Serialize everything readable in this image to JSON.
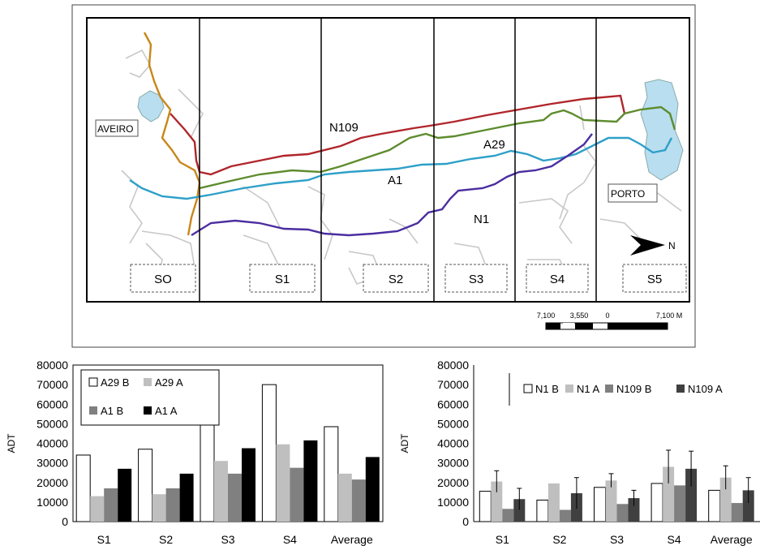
{
  "colors": {
    "n109": "#b0262b",
    "a29": "#5e8c2e",
    "a1": "#2ea0c8",
    "n1": "#4b2ea0",
    "coast_road": "#c8871a",
    "lagoon": "#b9def0",
    "outline": "#c8c8c8",
    "b_fill": "#ffffff",
    "a29a_fill": "#bfbfbf",
    "a1b_fill": "#808080",
    "a1a_fill": "#000000",
    "n1a_fill": "#bfbfbf",
    "n109b_fill": "#7f7f7f",
    "n109a_fill": "#404040"
  },
  "map": {
    "road_labels": {
      "n109": "N109",
      "a29": "A29",
      "a1": "A1",
      "n1": "N1"
    },
    "city_labels": {
      "aveiro": "AVEIRO",
      "porto": "PORTO"
    },
    "sections": [
      "SO",
      "S1",
      "S2",
      "S3",
      "S4",
      "S5"
    ],
    "north_label": "N",
    "scale_labels": [
      "7,100",
      "3,550",
      "0",
      "7,100 M"
    ]
  },
  "chart_data": [
    {
      "type": "bar",
      "categories": [
        "S1",
        "S2",
        "S3",
        "S4",
        "Average"
      ],
      "ylabel": "ADT",
      "ylim": [
        0,
        80000
      ],
      "yticks": [
        0,
        10000,
        20000,
        30000,
        40000,
        50000,
        60000,
        70000,
        80000
      ],
      "legend_position": "top-left",
      "series": [
        {
          "name": "A29 B",
          "values": [
            34000,
            37000,
            51500,
            70000,
            48500
          ]
        },
        {
          "name": "A29 A",
          "values": [
            13000,
            14000,
            31000,
            39500,
            24500
          ]
        },
        {
          "name": "A1 B",
          "values": [
            17000,
            17000,
            24500,
            27500,
            21500
          ]
        },
        {
          "name": "A1 A",
          "values": [
            27000,
            24500,
            37500,
            41500,
            33000
          ]
        }
      ]
    },
    {
      "type": "bar",
      "categories": [
        "S1",
        "S2",
        "S3",
        "S4",
        "Average"
      ],
      "ylabel": "ADT",
      "ylim": [
        0,
        80000
      ],
      "yticks": [
        0,
        10000,
        20000,
        30000,
        40000,
        50000,
        60000,
        70000,
        80000
      ],
      "legend_position": "top",
      "series": [
        {
          "name": "N1 B",
          "values": [
            15500,
            11000,
            17500,
            19500,
            16000
          ],
          "errors": [
            0,
            0,
            0,
            0,
            0
          ]
        },
        {
          "name": "N1 A",
          "values": [
            20500,
            19500,
            21000,
            28000,
            22500
          ],
          "errors": [
            5500,
            0,
            3500,
            8500,
            6000
          ]
        },
        {
          "name": "N109 B",
          "values": [
            6500,
            6000,
            9000,
            18500,
            9500
          ],
          "errors": [
            0,
            0,
            0,
            0,
            0
          ]
        },
        {
          "name": "N109 A",
          "values": [
            11500,
            14500,
            12000,
            27000,
            16000
          ],
          "errors": [
            5500,
            8000,
            4000,
            9000,
            6500
          ]
        }
      ]
    }
  ]
}
